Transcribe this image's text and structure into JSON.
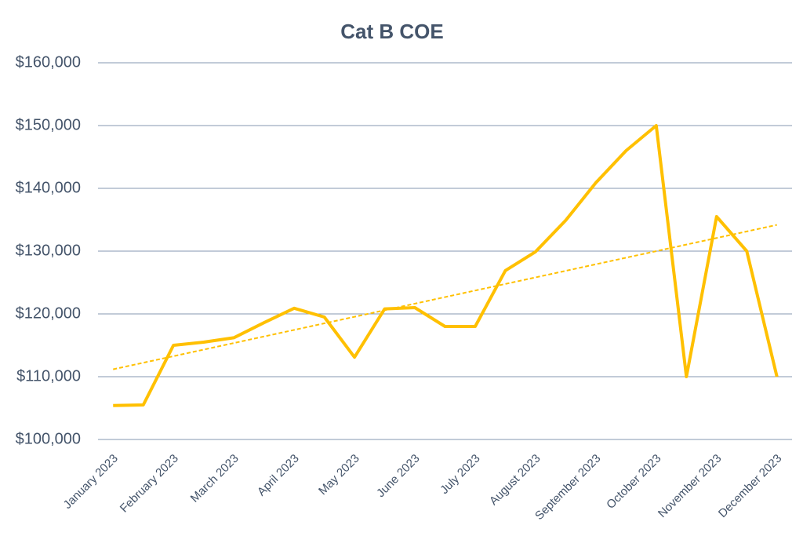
{
  "chart_data": {
    "type": "line",
    "title": "Cat B COE",
    "categories": [
      "January 2023",
      null,
      "February 2023",
      null,
      "March 2023",
      null,
      "April 2023",
      null,
      "May 2023",
      null,
      "June 2023",
      null,
      "July 2023",
      null,
      "August 2023",
      null,
      "September 2023",
      null,
      "October 2023",
      null,
      "November 2023",
      null,
      "December 2023"
    ],
    "series": [
      {
        "name": "Cat B COE",
        "color": "#ffc000",
        "values": [
          105400,
          105500,
          115000,
          115500,
          116200,
          118600,
          120900,
          119500,
          113100,
          120800,
          121000,
          118000,
          118000,
          126900,
          129900,
          134900,
          140900,
          146000,
          150000,
          110000,
          135500,
          130000,
          110000
        ]
      }
    ],
    "trendline": "linear",
    "ylim": [
      100000,
      160000
    ],
    "yticks": [
      {
        "value": 100000,
        "label": "$100,000"
      },
      {
        "value": 110000,
        "label": "$110,000"
      },
      {
        "value": 120000,
        "label": "$120,000"
      },
      {
        "value": 130000,
        "label": "$130,000"
      },
      {
        "value": 140000,
        "label": "$140,000"
      },
      {
        "value": 150000,
        "label": "$150,000"
      },
      {
        "value": 160000,
        "label": "$160,000"
      }
    ],
    "grid": true
  }
}
